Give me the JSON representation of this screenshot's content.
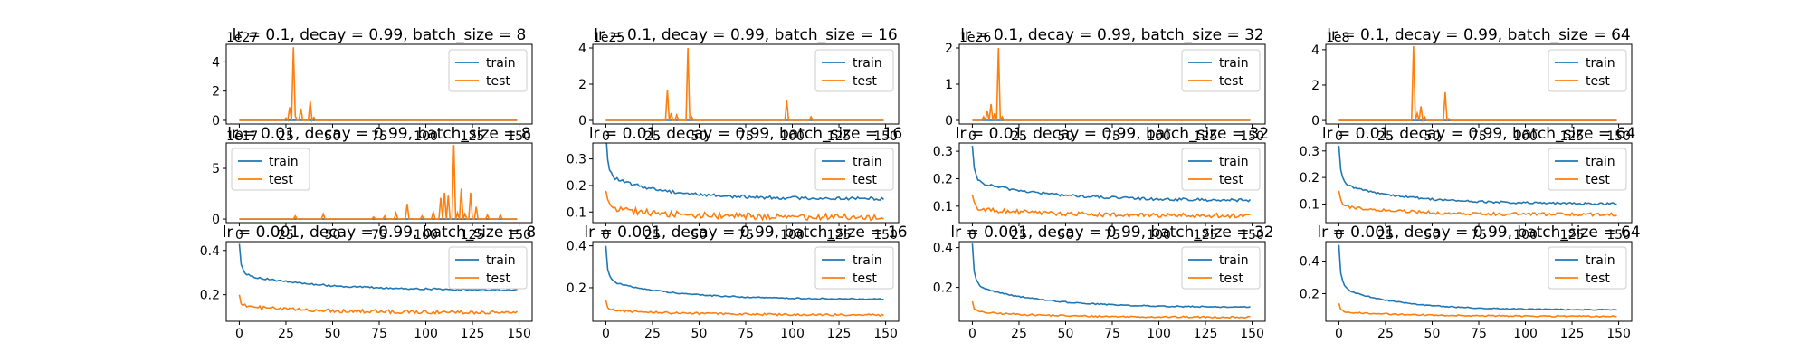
{
  "colors": {
    "train": "#1f77b4",
    "test": "#ff7f0e"
  },
  "chart_data": [
    {
      "type": "line",
      "title": "lr = 0.1, decay = 0.99, batch_size = 8",
      "xlim": [
        -7,
        157
      ],
      "ylim": [
        -0.25,
        5.2
      ],
      "y_scale_label": "1e27",
      "xticks": [
        0,
        25,
        50,
        75,
        100,
        125,
        150
      ],
      "yticks": [
        0,
        2,
        4
      ],
      "legend": "upper right",
      "series": [
        {
          "name": "train",
          "color": "#1f77b4",
          "kind": "flat",
          "level": 0.0
        },
        {
          "name": "test",
          "color": "#ff7f0e",
          "kind": "spiky",
          "level": 0.0,
          "spikes": [
            [
              25,
              0.15
            ],
            [
              27,
              0.9
            ],
            [
              29,
              5.0
            ],
            [
              30,
              0.3
            ],
            [
              33,
              0.8
            ],
            [
              38,
              1.3
            ],
            [
              40,
              0.2
            ]
          ]
        }
      ]
    },
    {
      "type": "line",
      "title": "lr = 0.1, decay = 0.99, batch_size = 16",
      "xlim": [
        -7,
        157
      ],
      "ylim": [
        -0.2,
        4.2
      ],
      "y_scale_label": "1e25",
      "xticks": [
        0,
        25,
        50,
        75,
        100,
        125,
        150
      ],
      "yticks": [
        0,
        2,
        4
      ],
      "legend": "upper right",
      "series": [
        {
          "name": "train",
          "color": "#1f77b4",
          "kind": "flat",
          "level": 0.0
        },
        {
          "name": "test",
          "color": "#ff7f0e",
          "kind": "spiky",
          "level": 0.0,
          "spikes": [
            [
              33,
              1.7
            ],
            [
              35,
              0.4
            ],
            [
              38,
              0.3
            ],
            [
              44,
              4.0
            ],
            [
              46,
              0.2
            ],
            [
              97,
              1.1
            ],
            [
              110,
              0.2
            ]
          ]
        }
      ]
    },
    {
      "type": "line",
      "title": "lr = 0.1, decay = 0.99, batch_size = 32",
      "xlim": [
        -7,
        157
      ],
      "ylim": [
        -0.1,
        2.1
      ],
      "y_scale_label": "1e26",
      "xticks": [
        0,
        25,
        50,
        75,
        100,
        125,
        150
      ],
      "yticks": [
        0,
        1,
        2
      ],
      "legend": "upper right",
      "series": [
        {
          "name": "train",
          "color": "#1f77b4",
          "kind": "flat",
          "level": 0.0
        },
        {
          "name": "test",
          "color": "#ff7f0e",
          "kind": "spiky",
          "level": 0.0,
          "spikes": [
            [
              6,
              0.1
            ],
            [
              8,
              0.25
            ],
            [
              10,
              0.45
            ],
            [
              12,
              0.2
            ],
            [
              14,
              2.0
            ],
            [
              16,
              0.1
            ]
          ]
        }
      ]
    },
    {
      "type": "line",
      "title": "lr = 0.1, decay = 0.99, batch_size = 64",
      "xlim": [
        -7,
        157
      ],
      "ylim": [
        -0.2,
        4.3
      ],
      "y_scale_label": "1e8",
      "xticks": [
        0,
        25,
        50,
        75,
        100,
        125,
        150
      ],
      "yticks": [
        0,
        2,
        4
      ],
      "legend": "upper right",
      "series": [
        {
          "name": "train",
          "color": "#1f77b4",
          "kind": "flat",
          "level": 0.0
        },
        {
          "name": "test",
          "color": "#ff7f0e",
          "kind": "spiky",
          "level": 0.0,
          "spikes": [
            [
              40,
              4.2
            ],
            [
              42,
              0.4
            ],
            [
              44,
              0.8
            ],
            [
              46,
              0.2
            ],
            [
              57,
              1.6
            ],
            [
              59,
              0.1
            ]
          ]
        }
      ]
    },
    {
      "type": "line",
      "title": "lr = 0.01, decay = 0.99, batch_size = 8",
      "xlim": [
        -7,
        157
      ],
      "ylim": [
        -0.35,
        7.5
      ],
      "y_scale_label": "1e17",
      "xticks": [
        0,
        25,
        50,
        75,
        100,
        125,
        150
      ],
      "yticks": [
        0,
        5
      ],
      "legend": "upper left",
      "series": [
        {
          "name": "train",
          "color": "#1f77b4",
          "kind": "flat",
          "level": 0.0
        },
        {
          "name": "test",
          "color": "#ff7f0e",
          "kind": "spiky",
          "level": 0.0,
          "spikes": [
            [
              30,
              0.3
            ],
            [
              45,
              0.5
            ],
            [
              72,
              0.2
            ],
            [
              78,
              0.3
            ],
            [
              84,
              0.6
            ],
            [
              90,
              1.5
            ],
            [
              98,
              0.3
            ],
            [
              104,
              0.7
            ],
            [
              108,
              2.1
            ],
            [
              110,
              2.6
            ],
            [
              112,
              2.3
            ],
            [
              115,
              7.3
            ],
            [
              117,
              0.6
            ],
            [
              119,
              3.0
            ],
            [
              121,
              0.5
            ],
            [
              124,
              2.6
            ],
            [
              127,
              1.2
            ],
            [
              133,
              0.4
            ],
            [
              140,
              0.4
            ]
          ]
        }
      ]
    },
    {
      "type": "line",
      "title": "lr = 0.01, decay = 0.99, batch_size = 16",
      "xlim": [
        -7,
        157
      ],
      "ylim": [
        0.06,
        0.36
      ],
      "xticks": [
        0,
        25,
        50,
        75,
        100,
        125,
        150
      ],
      "yticks": [
        0.1,
        0.2,
        0.3
      ],
      "legend": "upper right",
      "series": [
        {
          "name": "train",
          "color": "#1f77b4",
          "kind": "decay",
          "start": 0.4,
          "plateau": 0.15,
          "k": 30,
          "noise": 0.006
        },
        {
          "name": "test",
          "color": "#ff7f0e",
          "kind": "decay",
          "start": 0.18,
          "plateau": 0.08,
          "k": 35,
          "noise": 0.012
        }
      ]
    },
    {
      "type": "line",
      "title": "lr = 0.01, decay = 0.99, batch_size = 32",
      "xlim": [
        -7,
        157
      ],
      "ylim": [
        0.04,
        0.33
      ],
      "xticks": [
        0,
        25,
        50,
        75,
        100,
        125,
        150
      ],
      "yticks": [
        0.1,
        0.2,
        0.3
      ],
      "legend": "upper right",
      "series": [
        {
          "name": "train",
          "color": "#1f77b4",
          "kind": "decay",
          "start": 0.32,
          "plateau": 0.12,
          "k": 40,
          "noise": 0.005
        },
        {
          "name": "test",
          "color": "#ff7f0e",
          "kind": "decay",
          "start": 0.14,
          "plateau": 0.065,
          "k": 40,
          "noise": 0.008
        }
      ]
    },
    {
      "type": "line",
      "title": "lr = 0.01, decay = 0.99, batch_size = 64",
      "xlim": [
        -7,
        157
      ],
      "ylim": [
        0.03,
        0.33
      ],
      "xticks": [
        0,
        25,
        50,
        75,
        100,
        125,
        150
      ],
      "yticks": [
        0.1,
        0.2,
        0.3
      ],
      "legend": "upper right",
      "series": [
        {
          "name": "train",
          "color": "#1f77b4",
          "kind": "decay",
          "start": 0.32,
          "plateau": 0.1,
          "k": 35,
          "noise": 0.004
        },
        {
          "name": "test",
          "color": "#ff7f0e",
          "kind": "decay",
          "start": 0.15,
          "plateau": 0.06,
          "k": 35,
          "noise": 0.006
        }
      ]
    },
    {
      "type": "line",
      "title": "lr = 0.001, decay = 0.99, batch_size = 8",
      "xlim": [
        -7,
        157
      ],
      "ylim": [
        0.08,
        0.44
      ],
      "xticks": [
        0,
        25,
        50,
        75,
        100,
        125,
        150
      ],
      "yticks": [
        0.2,
        0.4
      ],
      "legend": "upper right",
      "series": [
        {
          "name": "train",
          "color": "#1f77b4",
          "kind": "decay",
          "start": 0.43,
          "plateau": 0.22,
          "k": 40,
          "noise": 0.004
        },
        {
          "name": "test",
          "color": "#ff7f0e",
          "kind": "decay",
          "start": 0.2,
          "plateau": 0.12,
          "k": 40,
          "noise": 0.008
        }
      ]
    },
    {
      "type": "line",
      "title": "lr = 0.001, decay = 0.99, batch_size = 16",
      "xlim": [
        -7,
        157
      ],
      "ylim": [
        0.04,
        0.42
      ],
      "xticks": [
        0,
        25,
        50,
        75,
        100,
        125,
        150
      ],
      "yticks": [
        0.2,
        0.4
      ],
      "legend": "upper right",
      "series": [
        {
          "name": "train",
          "color": "#1f77b4",
          "kind": "decay",
          "start": 0.4,
          "plateau": 0.145,
          "k": 35,
          "noise": 0.003
        },
        {
          "name": "test",
          "color": "#ff7f0e",
          "kind": "decay",
          "start": 0.14,
          "plateau": 0.07,
          "k": 40,
          "noise": 0.005
        }
      ]
    },
    {
      "type": "line",
      "title": "lr = 0.001, decay = 0.99, batch_size = 32",
      "xlim": [
        -7,
        157
      ],
      "ylim": [
        0.03,
        0.43
      ],
      "xticks": [
        0,
        25,
        50,
        75,
        100,
        125,
        150
      ],
      "yticks": [
        0.2,
        0.4
      ],
      "legend": "upper right",
      "series": [
        {
          "name": "train",
          "color": "#1f77b4",
          "kind": "decay",
          "start": 0.42,
          "plateau": 0.1,
          "k": 35,
          "noise": 0.003
        },
        {
          "name": "test",
          "color": "#ff7f0e",
          "kind": "decay",
          "start": 0.13,
          "plateau": 0.05,
          "k": 40,
          "noise": 0.004
        }
      ]
    },
    {
      "type": "line",
      "title": "lr = 0.001, decay = 0.99, batch_size = 64",
      "xlim": [
        -7,
        157
      ],
      "ylim": [
        0.03,
        0.52
      ],
      "xticks": [
        0,
        25,
        50,
        75,
        100,
        125,
        150
      ],
      "yticks": [
        0.2,
        0.4
      ],
      "legend": "upper right",
      "series": [
        {
          "name": "train",
          "color": "#1f77b4",
          "kind": "decay",
          "start": 0.5,
          "plateau": 0.1,
          "k": 30,
          "noise": 0.003
        },
        {
          "name": "test",
          "color": "#ff7f0e",
          "kind": "decay",
          "start": 0.14,
          "plateau": 0.06,
          "k": 40,
          "noise": 0.004
        }
      ]
    }
  ]
}
